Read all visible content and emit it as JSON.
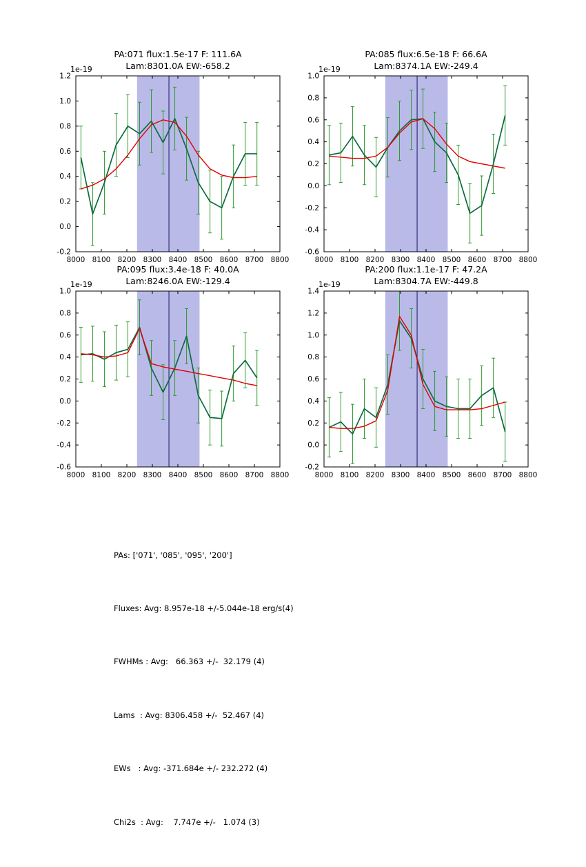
{
  "colors": {
    "data_line": "#0e6b40",
    "error_bar": "#2d9a2d",
    "fit_line": "#e40000",
    "band": "#babae9",
    "vline": "#151560",
    "axis": "#000000"
  },
  "chart_data": [
    {
      "type": "line",
      "title_line1": "PA:071 flux:1.5e-17 F: 111.6A",
      "title_line2": "Lam:8301.0A EW:-658.2",
      "y_offset_label": "1e-19",
      "xlim": [
        8000,
        8800
      ],
      "ylim": [
        -0.2,
        1.2
      ],
      "xticks": [
        8000,
        8100,
        8200,
        8300,
        8400,
        8500,
        8600,
        8700,
        8800
      ],
      "yticks": [
        -0.2,
        0.0,
        0.2,
        0.4,
        0.6,
        0.8,
        1.0,
        1.2
      ],
      "shaded_band_x": [
        8240,
        8485
      ],
      "vline_x": 8365,
      "x": [
        8020,
        8066,
        8112,
        8158,
        8204,
        8250,
        8296,
        8342,
        8388,
        8434,
        8480,
        8526,
        8572,
        8618,
        8664,
        8710
      ],
      "series": [
        {
          "name": "spectrum",
          "err": 0.25,
          "values": [
            0.55,
            0.1,
            0.35,
            0.65,
            0.8,
            0.74,
            0.84,
            0.67,
            0.86,
            0.62,
            0.35,
            0.2,
            0.15,
            0.4,
            0.58,
            0.58
          ]
        },
        {
          "name": "fit",
          "values": [
            0.3,
            0.33,
            0.38,
            0.46,
            0.57,
            0.7,
            0.81,
            0.85,
            0.83,
            0.72,
            0.57,
            0.46,
            0.41,
            0.39,
            0.39,
            0.4
          ]
        }
      ]
    },
    {
      "type": "line",
      "title_line1": "PA:085 flux:6.5e-18 F: 66.6A",
      "title_line2": "Lam:8374.1A EW:-249.4",
      "y_offset_label": "1e-19",
      "xlim": [
        8000,
        8800
      ],
      "ylim": [
        -0.6,
        1.0
      ],
      "xticks": [
        8000,
        8100,
        8200,
        8300,
        8400,
        8500,
        8600,
        8700,
        8800
      ],
      "yticks": [
        -0.6,
        -0.4,
        -0.2,
        0.0,
        0.2,
        0.4,
        0.6,
        0.8,
        1.0
      ],
      "shaded_band_x": [
        8240,
        8485
      ],
      "vline_x": 8365,
      "x": [
        8020,
        8066,
        8112,
        8158,
        8204,
        8250,
        8296,
        8342,
        8388,
        8434,
        8480,
        8526,
        8572,
        8618,
        8664,
        8710
      ],
      "series": [
        {
          "name": "spectrum",
          "err": 0.27,
          "values": [
            0.28,
            0.3,
            0.45,
            0.28,
            0.17,
            0.35,
            0.5,
            0.6,
            0.61,
            0.4,
            0.3,
            0.1,
            -0.25,
            -0.18,
            0.2,
            0.64
          ]
        },
        {
          "name": "fit",
          "values": [
            0.27,
            0.26,
            0.25,
            0.25,
            0.27,
            0.35,
            0.48,
            0.58,
            0.61,
            0.52,
            0.38,
            0.27,
            0.22,
            0.2,
            0.18,
            0.16
          ]
        }
      ]
    },
    {
      "type": "line",
      "title_line1": "PA:095 flux:3.4e-18 F: 40.0A",
      "title_line2": "Lam:8246.0A EW:-129.4",
      "y_offset_label": "1e-19",
      "xlim": [
        8000,
        8800
      ],
      "ylim": [
        -0.6,
        1.0
      ],
      "xticks": [
        8000,
        8100,
        8200,
        8300,
        8400,
        8500,
        8600,
        8700,
        8800
      ],
      "yticks": [
        -0.6,
        -0.4,
        -0.2,
        0.0,
        0.2,
        0.4,
        0.6,
        0.8,
        1.0
      ],
      "shaded_band_x": [
        8240,
        8485
      ],
      "vline_x": 8365,
      "x": [
        8020,
        8066,
        8112,
        8158,
        8204,
        8250,
        8296,
        8342,
        8388,
        8434,
        8480,
        8526,
        8572,
        8618,
        8664,
        8710
      ],
      "series": [
        {
          "name": "spectrum",
          "err": 0.25,
          "values": [
            0.42,
            0.43,
            0.38,
            0.44,
            0.47,
            0.67,
            0.3,
            0.08,
            0.3,
            0.59,
            0.05,
            -0.15,
            -0.16,
            0.25,
            0.37,
            0.21
          ]
        },
        {
          "name": "fit",
          "values": [
            0.43,
            0.42,
            0.4,
            0.41,
            0.44,
            0.66,
            0.34,
            0.31,
            0.29,
            0.27,
            0.25,
            0.23,
            0.21,
            0.19,
            0.16,
            0.14
          ]
        }
      ]
    },
    {
      "type": "line",
      "title_line1": "PA:200 flux:1.1e-17 F: 47.2A",
      "title_line2": "Lam:8304.7A EW:-449.8",
      "y_offset_label": "1e-19",
      "xlim": [
        8000,
        8800
      ],
      "ylim": [
        -0.2,
        1.4
      ],
      "xticks": [
        8000,
        8100,
        8200,
        8300,
        8400,
        8500,
        8600,
        8700,
        8800
      ],
      "yticks": [
        -0.2,
        0.0,
        0.2,
        0.4,
        0.6,
        0.8,
        1.0,
        1.2,
        1.4
      ],
      "shaded_band_x": [
        8240,
        8485
      ],
      "vline_x": 8365,
      "x": [
        8020,
        8066,
        8112,
        8158,
        8204,
        8250,
        8296,
        8342,
        8388,
        8434,
        8480,
        8526,
        8572,
        8618,
        8664,
        8710
      ],
      "series": [
        {
          "name": "spectrum",
          "err": 0.27,
          "values": [
            0.16,
            0.21,
            0.1,
            0.33,
            0.25,
            0.55,
            1.13,
            0.97,
            0.6,
            0.4,
            0.35,
            0.33,
            0.33,
            0.45,
            0.52,
            0.12
          ]
        },
        {
          "name": "fit",
          "values": [
            0.16,
            0.15,
            0.15,
            0.17,
            0.22,
            0.5,
            1.17,
            1.0,
            0.55,
            0.35,
            0.32,
            0.32,
            0.32,
            0.33,
            0.36,
            0.39
          ]
        }
      ]
    }
  ],
  "summary": {
    "lines": [
      "PAs: ['071', '085', '095', '200']",
      "Fluxes: Avg: 8.957e-18 +/-5.044e-18 erg/s(4)",
      "FWHMs : Avg:   66.363 +/-  32.179 (4)",
      "Lams  : Avg: 8306.458 +/-  52.467 (4)",
      "EWs   : Avg: -371.684e +/- 232.272 (4)",
      "Chi2s  : Avg:    7.747e +/-   1.074 (3)"
    ]
  }
}
